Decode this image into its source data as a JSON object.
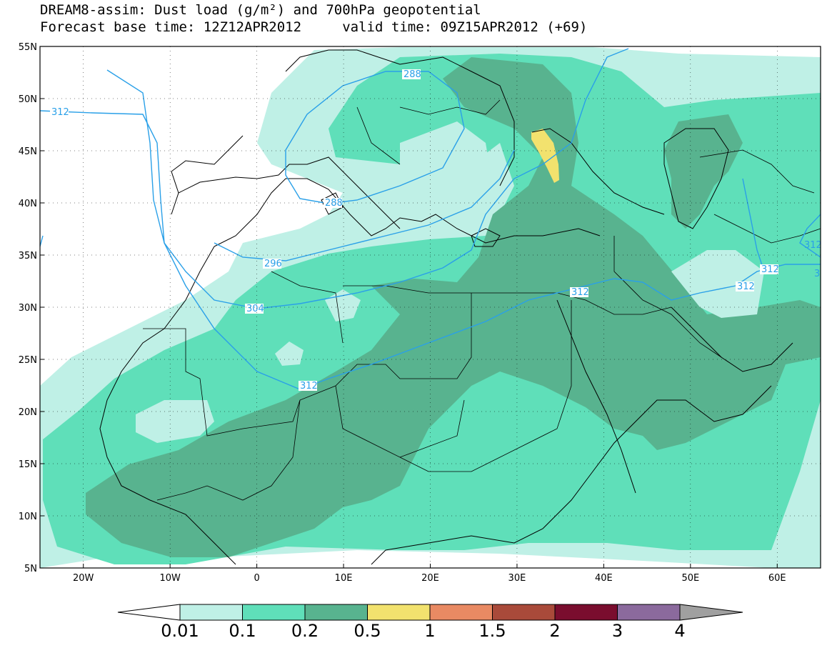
{
  "title": {
    "line1": "DREAM8-assim: Dust load (g/m²) and 700hPa geopotential",
    "line2": "Forecast base time: 12Z12APR2012     valid time: 09Z15APR2012 (+69)"
  },
  "map": {
    "lon_range": [
      -25,
      65
    ],
    "lat_range": [
      5,
      55
    ],
    "lat_ticks": [
      "55N",
      "50N",
      "45N",
      "40N",
      "35N",
      "30N",
      "25N",
      "20N",
      "15N",
      "10N",
      "5N"
    ],
    "lon_ticks": [
      "20W",
      "10W",
      "0",
      "10E",
      "20E",
      "30E",
      "40E",
      "50E",
      "60E"
    ],
    "contour_labels": [
      "312",
      "288",
      "288",
      "296",
      "304",
      "312",
      "312",
      "312",
      "312",
      "3",
      "312"
    ]
  },
  "colorbar": {
    "labels": [
      "0.01",
      "0.1",
      "0.2",
      "0.5",
      "1",
      "1.5",
      "2",
      "3",
      "4"
    ],
    "colors": [
      "#ffffff",
      "#bff0e6",
      "#5fdfb9",
      "#58b38f",
      "#f2e26e",
      "#e98a63",
      "#a94a3a",
      "#7a0d2e",
      "#8b6a9d",
      "#a0a0a0"
    ]
  },
  "dust_colors": {
    "level1": "#bff0e6",
    "level2": "#5fdfb9",
    "level3": "#58b38f",
    "level4": "#f2e26e"
  },
  "contour_color": "#2aa0e8"
}
